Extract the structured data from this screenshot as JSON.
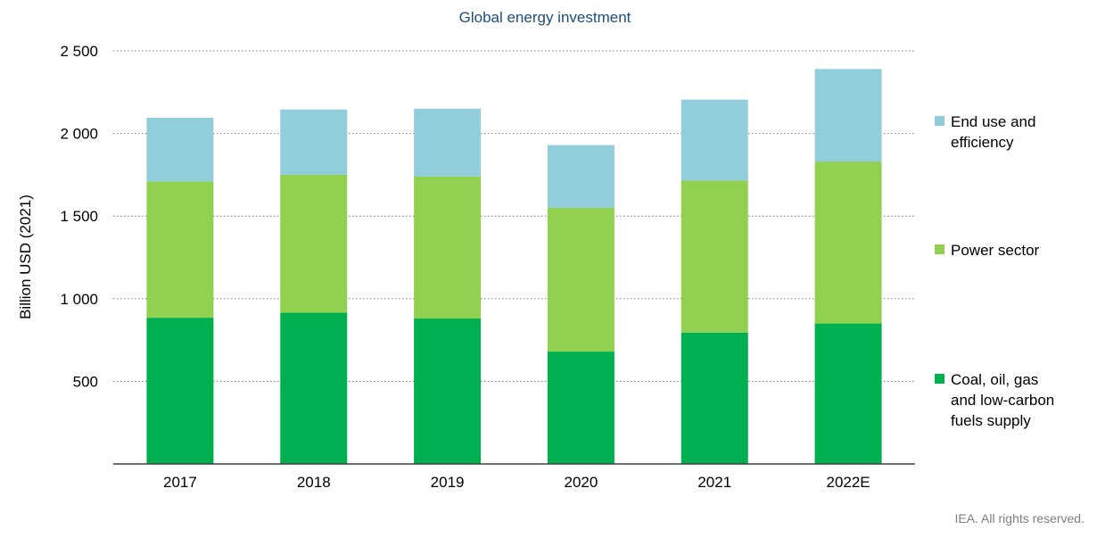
{
  "chart_data": {
    "type": "bar",
    "stacked": true,
    "title": "Global energy investment",
    "xlabel": "",
    "ylabel": "Billion USD (2021)",
    "ylim": [
      0,
      2500
    ],
    "yticks": [
      500,
      1000,
      1500,
      2000,
      2500
    ],
    "ytick_labels": [
      "500",
      "1 000",
      "1 500",
      "2 000",
      "2 500"
    ],
    "categories": [
      "2017",
      "2018",
      "2019",
      "2020",
      "2021",
      "2022E"
    ],
    "series": [
      {
        "name": "Coal, oil, gas and low-carbon fuels supply",
        "legend_lines": [
          "Coal, oil, gas",
          "and low-carbon",
          "fuels supply"
        ],
        "color": "#00b050",
        "values": [
          885,
          915,
          880,
          680,
          795,
          850
        ]
      },
      {
        "name": "Power sector",
        "legend_lines": [
          "Power sector"
        ],
        "color": "#92d050",
        "values": [
          825,
          835,
          860,
          870,
          920,
          980
        ]
      },
      {
        "name": "End use and efficiency",
        "legend_lines": [
          "End use and",
          "efficiency"
        ],
        "color": "#92cddc",
        "values": [
          385,
          395,
          410,
          380,
          490,
          560
        ]
      }
    ],
    "grid": true,
    "legend_position": "right"
  },
  "footer": {
    "credit": "IEA. All rights reserved."
  }
}
